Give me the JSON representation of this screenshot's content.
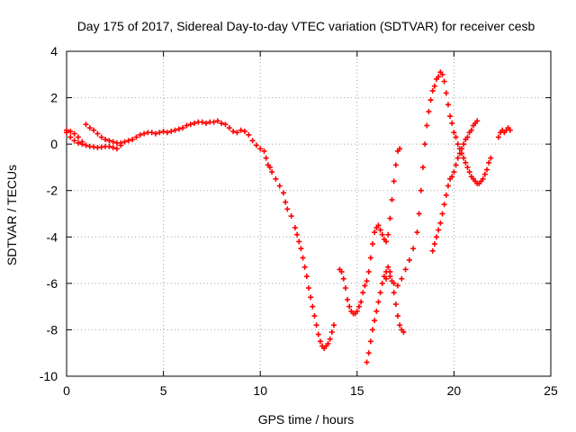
{
  "chart_data": {
    "type": "scatter",
    "title": "Day 175 of 2017, Sidereal Day-to-day VTEC variation (SDTVAR) for receiver cesb",
    "xlabel": "GPS time / hours",
    "ylabel": "SDTVAR / TECUs",
    "xlim": [
      0,
      25
    ],
    "ylim": [
      -10,
      4
    ],
    "x_ticks": [
      0,
      5,
      10,
      15,
      20,
      25
    ],
    "y_ticks": [
      -10,
      -8,
      -6,
      -4,
      -2,
      0,
      2,
      4
    ],
    "grid": true,
    "marker": "+",
    "color": "#ff0000",
    "series": [
      {
        "points": [
          [
            0.0,
            0.5
          ],
          [
            0.2,
            0.3
          ],
          [
            0.4,
            0.15
          ],
          [
            0.6,
            0.05
          ],
          [
            0.8,
            0.0
          ],
          [
            1.0,
            -0.05
          ],
          [
            1.2,
            -0.1
          ],
          [
            1.4,
            -0.12
          ],
          [
            1.6,
            -0.15
          ],
          [
            1.8,
            -0.13
          ],
          [
            2.0,
            -0.1
          ],
          [
            2.2,
            -0.1
          ],
          [
            2.4,
            -0.15
          ],
          [
            2.6,
            -0.2
          ],
          [
            2.8,
            -0.05
          ],
          [
            3.0,
            0.1
          ],
          [
            3.2,
            0.15
          ],
          [
            3.4,
            0.2
          ],
          [
            3.6,
            0.3
          ],
          [
            3.8,
            0.4
          ],
          [
            4.0,
            0.45
          ],
          [
            4.2,
            0.5
          ],
          [
            4.4,
            0.5
          ],
          [
            4.6,
            0.45
          ],
          [
            4.8,
            0.5
          ],
          [
            5.0,
            0.55
          ],
          [
            5.2,
            0.5
          ],
          [
            5.4,
            0.55
          ],
          [
            5.6,
            0.6
          ],
          [
            5.8,
            0.65
          ],
          [
            6.0,
            0.7
          ],
          [
            6.2,
            0.8
          ],
          [
            6.4,
            0.85
          ],
          [
            6.6,
            0.9
          ],
          [
            6.8,
            0.95
          ],
          [
            7.0,
            0.95
          ],
          [
            7.2,
            0.9
          ],
          [
            7.4,
            0.95
          ],
          [
            7.6,
            0.95
          ],
          [
            7.8,
            1.0
          ],
          [
            8.0,
            0.9
          ],
          [
            8.2,
            0.85
          ],
          [
            8.4,
            0.7
          ],
          [
            8.6,
            0.55
          ],
          [
            8.8,
            0.5
          ],
          [
            9.0,
            0.6
          ],
          [
            9.2,
            0.55
          ],
          [
            9.4,
            0.4
          ],
          [
            9.6,
            0.15
          ],
          [
            9.8,
            -0.05
          ],
          [
            10.0,
            -0.2
          ],
          [
            10.2,
            -0.3
          ],
          [
            10.3,
            -0.6
          ],
          [
            10.4,
            -0.9
          ],
          [
            10.5,
            -1.0
          ],
          [
            10.6,
            -1.2
          ],
          [
            10.8,
            -1.5
          ],
          [
            11.0,
            -1.8
          ],
          [
            11.2,
            -2.1
          ],
          [
            11.3,
            -2.5
          ],
          [
            11.4,
            -2.8
          ],
          [
            11.6,
            -3.1
          ],
          [
            11.8,
            -3.6
          ],
          [
            11.9,
            -3.9
          ],
          [
            12.0,
            -4.2
          ],
          [
            12.1,
            -4.5
          ],
          [
            12.2,
            -4.9
          ],
          [
            12.3,
            -5.3
          ],
          [
            12.4,
            -5.7
          ],
          [
            12.5,
            -6.2
          ],
          [
            12.6,
            -6.6
          ],
          [
            12.7,
            -7.0
          ],
          [
            12.8,
            -7.4
          ],
          [
            12.9,
            -7.8
          ],
          [
            13.0,
            -8.2
          ],
          [
            13.1,
            -8.5
          ],
          [
            13.2,
            -8.7
          ],
          [
            13.3,
            -8.8
          ],
          [
            13.4,
            -8.7
          ],
          [
            13.5,
            -8.6
          ],
          [
            13.6,
            -8.4
          ],
          [
            13.7,
            -8.1
          ],
          [
            13.8,
            -7.8
          ],
          [
            0.0,
            0.6
          ],
          [
            0.2,
            0.55
          ],
          [
            0.4,
            0.45
          ],
          [
            0.6,
            0.3
          ],
          [
            0.8,
            0.1
          ],
          [
            1.0,
            0.85
          ],
          [
            1.2,
            0.7
          ],
          [
            1.4,
            0.6
          ],
          [
            1.6,
            0.45
          ],
          [
            1.8,
            0.3
          ],
          [
            2.0,
            0.2
          ],
          [
            2.2,
            0.15
          ],
          [
            2.4,
            0.1
          ],
          [
            2.6,
            0.05
          ],
          [
            2.8,
            0.05
          ],
          [
            14.1,
            -5.4
          ],
          [
            14.2,
            -5.5
          ],
          [
            14.3,
            -5.8
          ],
          [
            14.4,
            -6.2
          ],
          [
            14.5,
            -6.7
          ],
          [
            14.6,
            -7.0
          ],
          [
            14.7,
            -7.2
          ],
          [
            14.8,
            -7.3
          ],
          [
            14.9,
            -7.3
          ],
          [
            15.0,
            -7.2
          ],
          [
            15.1,
            -7.0
          ],
          [
            15.2,
            -6.8
          ],
          [
            15.3,
            -6.4
          ],
          [
            15.4,
            -6.1
          ],
          [
            15.5,
            -5.9
          ],
          [
            15.6,
            -5.5
          ],
          [
            15.7,
            -4.9
          ],
          [
            15.8,
            -4.3
          ],
          [
            15.9,
            -3.8
          ],
          [
            16.0,
            -3.6
          ],
          [
            16.1,
            -3.5
          ],
          [
            16.2,
            -3.7
          ],
          [
            16.3,
            -3.9
          ],
          [
            16.4,
            -4.1
          ],
          [
            16.5,
            -4.2
          ],
          [
            16.6,
            -3.9
          ],
          [
            16.7,
            -3.2
          ],
          [
            16.8,
            -2.4
          ],
          [
            16.9,
            -1.6
          ],
          [
            17.0,
            -0.9
          ],
          [
            17.1,
            -0.3
          ],
          [
            17.2,
            -0.2
          ],
          [
            15.5,
            -9.4
          ],
          [
            15.6,
            -9.0
          ],
          [
            15.7,
            -8.5
          ],
          [
            15.8,
            -8.0
          ],
          [
            15.9,
            -7.6
          ],
          [
            16.0,
            -7.2
          ],
          [
            16.1,
            -6.8
          ],
          [
            16.2,
            -6.4
          ],
          [
            16.3,
            -6.0
          ],
          [
            16.4,
            -5.7
          ],
          [
            16.5,
            -5.5
          ],
          [
            16.6,
            -5.3
          ],
          [
            16.7,
            -5.5
          ],
          [
            16.8,
            -5.9
          ],
          [
            16.9,
            -6.4
          ],
          [
            17.0,
            -6.9
          ],
          [
            17.1,
            -7.4
          ],
          [
            17.2,
            -7.8
          ],
          [
            17.3,
            -8.0
          ],
          [
            17.4,
            -8.1
          ],
          [
            16.5,
            -5.8
          ],
          [
            16.7,
            -5.7
          ],
          [
            16.9,
            -6.0
          ],
          [
            17.1,
            -6.1
          ],
          [
            17.3,
            -5.8
          ],
          [
            17.5,
            -5.4
          ],
          [
            17.7,
            -5.0
          ],
          [
            17.9,
            -4.5
          ],
          [
            18.1,
            -3.8
          ],
          [
            18.2,
            -3.0
          ],
          [
            18.3,
            -2.0
          ],
          [
            18.4,
            -1.0
          ],
          [
            18.5,
            0.0
          ],
          [
            18.6,
            0.8
          ],
          [
            18.7,
            1.4
          ],
          [
            18.8,
            1.9
          ],
          [
            18.9,
            2.3
          ],
          [
            19.0,
            2.5
          ],
          [
            19.1,
            2.8
          ],
          [
            19.2,
            2.9
          ],
          [
            19.3,
            3.1
          ],
          [
            19.4,
            3.0
          ],
          [
            19.5,
            2.7
          ],
          [
            19.6,
            2.2
          ],
          [
            19.7,
            1.7
          ],
          [
            19.8,
            1.2
          ],
          [
            19.9,
            0.9
          ],
          [
            20.0,
            0.5
          ],
          [
            20.1,
            0.3
          ],
          [
            20.2,
            0.0
          ],
          [
            20.3,
            -0.2
          ],
          [
            20.4,
            -0.4
          ],
          [
            20.5,
            -0.6
          ],
          [
            20.6,
            -0.8
          ],
          [
            20.7,
            -1.0
          ],
          [
            20.8,
            -1.2
          ],
          [
            20.9,
            -1.4
          ],
          [
            21.0,
            -1.5
          ],
          [
            21.1,
            -1.6
          ],
          [
            21.2,
            -1.7
          ],
          [
            21.3,
            -1.7
          ],
          [
            21.4,
            -1.6
          ],
          [
            21.5,
            -1.5
          ],
          [
            21.6,
            -1.3
          ],
          [
            21.7,
            -1.1
          ],
          [
            21.8,
            -0.8
          ],
          [
            21.9,
            -0.6
          ],
          [
            18.9,
            -4.6
          ],
          [
            19.0,
            -4.3
          ],
          [
            19.1,
            -4.0
          ],
          [
            19.2,
            -3.7
          ],
          [
            19.3,
            -3.4
          ],
          [
            19.4,
            -3.0
          ],
          [
            19.5,
            -2.6
          ],
          [
            19.6,
            -2.2
          ],
          [
            19.7,
            -1.8
          ],
          [
            19.8,
            -1.5
          ],
          [
            19.9,
            -1.4
          ],
          [
            20.0,
            -1.2
          ],
          [
            20.1,
            -0.9
          ],
          [
            20.2,
            -0.6
          ],
          [
            20.3,
            -0.4
          ],
          [
            20.4,
            -0.2
          ],
          [
            20.5,
            0.0
          ],
          [
            20.6,
            0.2
          ],
          [
            20.7,
            0.3
          ],
          [
            20.8,
            0.5
          ],
          [
            20.9,
            0.6
          ],
          [
            21.0,
            0.8
          ],
          [
            21.1,
            0.9
          ],
          [
            21.2,
            1.0
          ],
          [
            22.3,
            0.3
          ],
          [
            22.4,
            0.5
          ],
          [
            22.5,
            0.6
          ],
          [
            22.6,
            0.5
          ],
          [
            22.7,
            0.6
          ],
          [
            22.8,
            0.7
          ],
          [
            22.9,
            0.6
          ]
        ]
      }
    ]
  }
}
